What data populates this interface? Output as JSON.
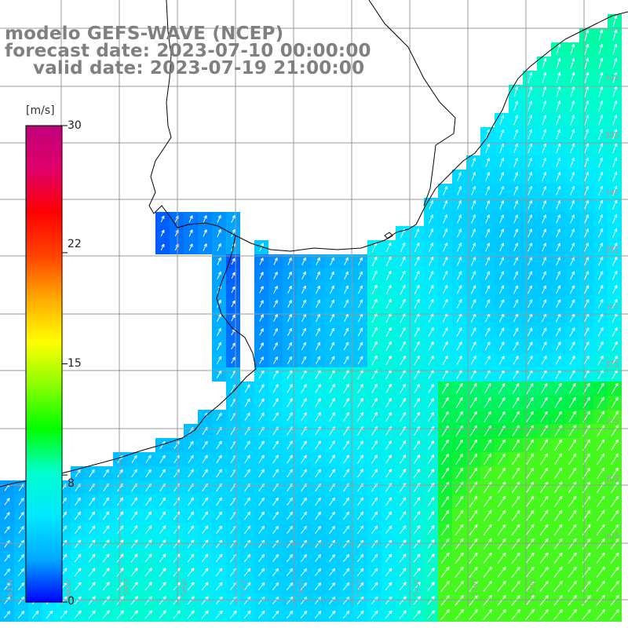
{
  "title": {
    "line1": "modelo GEFS-WAVE (NCEP)",
    "line2": "forecast date: 2023-07-10 00:00:00",
    "line3": "valid date: 2023-07-19 21:00:00"
  },
  "colorbar": {
    "unit": "[m/s]",
    "min": 0,
    "max": 30,
    "ticks": [
      "30",
      "22",
      "15",
      "8",
      "0"
    ],
    "colors": [
      "#0000ff",
      "#00aaff",
      "#00e8ff",
      "#00ffd0",
      "#00ff00",
      "#88ff00",
      "#ffff00",
      "#ffaa00",
      "#ff4400",
      "#ff0000",
      "#e0006a",
      "#c0007a"
    ]
  },
  "grid": {
    "lat_labels": [
      "32S",
      "33S",
      "34S",
      "35S",
      "36S",
      "37S",
      "38S",
      "39S",
      "40S"
    ],
    "lon_labels": [
      "61W",
      "60W",
      "59W",
      "58W",
      "57W",
      "56W",
      "55W",
      "54W",
      "53W",
      "52W"
    ]
  },
  "field_colors": {
    "land": "#ffffff",
    "coast": "#000000",
    "grid": "#999999",
    "arrows": "#ffffff"
  }
}
